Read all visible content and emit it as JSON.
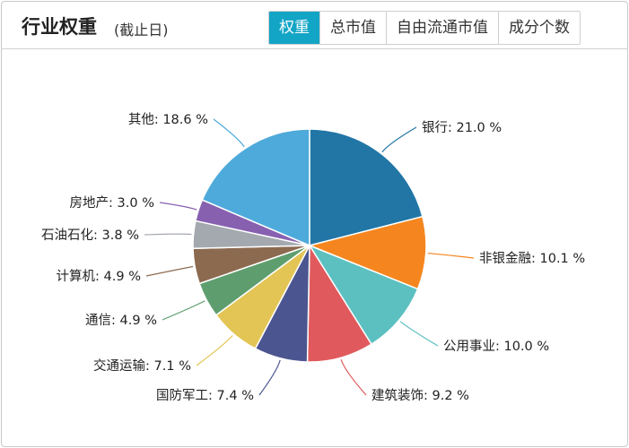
{
  "header": {
    "title": "行业权重",
    "subtitle": "(截止日)",
    "tabs": [
      {
        "label": "权重",
        "active": true
      },
      {
        "label": "总市值",
        "active": false
      },
      {
        "label": "自由流通市值",
        "active": false
      },
      {
        "label": "成分个数",
        "active": false
      }
    ]
  },
  "colors": {
    "tab_active": "#13a5c6"
  },
  "chart_data": {
    "type": "pie",
    "unit": "%",
    "slices": [
      {
        "label": "银行",
        "value": 21.0,
        "display": "21.0 %",
        "color": "#2176a6"
      },
      {
        "label": "非银金融",
        "value": 10.1,
        "display": "10.1 %",
        "color": "#f5861f"
      },
      {
        "label": "公用事业",
        "value": 10.0,
        "display": "10.0 %",
        "color": "#5dc0c0"
      },
      {
        "label": "建筑装饰",
        "value": 9.2,
        "display": "9.2 %",
        "color": "#e05a5d"
      },
      {
        "label": "国防军工",
        "value": 7.4,
        "display": "7.4 %",
        "color": "#4b5590"
      },
      {
        "label": "交通运输",
        "value": 7.1,
        "display": "7.1 %",
        "color": "#e3c556"
      },
      {
        "label": "通信",
        "value": 4.9,
        "display": "4.9 %",
        "color": "#5e9e6e"
      },
      {
        "label": "计算机",
        "value": 4.9,
        "display": "4.9 %",
        "color": "#8c6a50"
      },
      {
        "label": "石油石化",
        "value": 3.8,
        "display": "3.8 %",
        "color": "#a4a9af"
      },
      {
        "label": "房地产",
        "value": 3.0,
        "display": "3.0 %",
        "color": "#8760b0"
      },
      {
        "label": "其他",
        "value": 18.6,
        "display": "18.6 %",
        "color": "#4eaadb"
      }
    ]
  }
}
